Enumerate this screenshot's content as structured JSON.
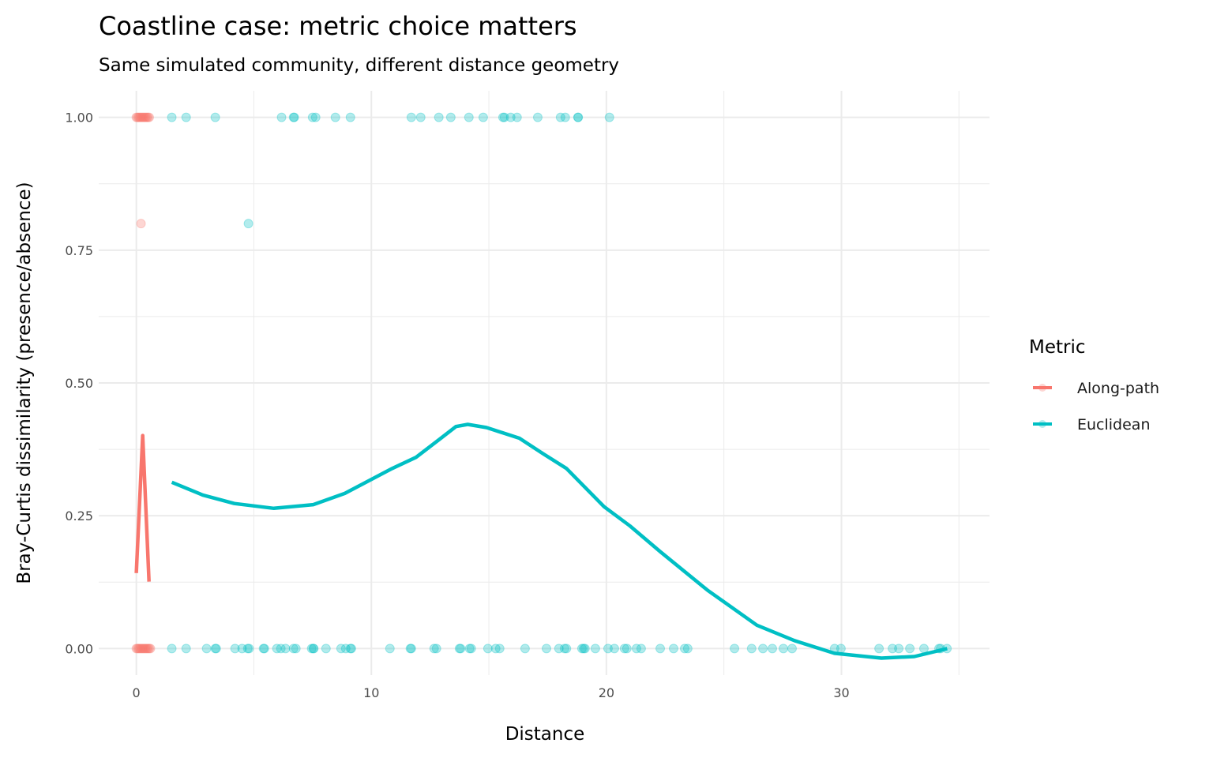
{
  "chart_data": {
    "type": "scatter",
    "title": "Coastline case: metric choice matters",
    "subtitle": "Same simulated community, different distance geometry",
    "xlabel": "Distance",
    "ylabel": "Bray-Curtis dissimilarity (presence/absence)",
    "xlim": [
      -1.6,
      36.3
    ],
    "ylim": [
      -0.05,
      1.05
    ],
    "xticks": [
      0,
      10,
      20,
      30
    ],
    "xtick_labels": [
      "0",
      "10",
      "20",
      "30"
    ],
    "yticks": [
      0,
      0.25,
      0.5,
      0.75,
      1
    ],
    "ytick_labels": [
      "0.00",
      "0.25",
      "0.50",
      "0.75",
      "1.00"
    ],
    "grid": true,
    "legend": {
      "title": "Metric",
      "placement": "right"
    },
    "series": [
      {
        "name": "Along-path",
        "color": "#F8766D",
        "points_y1": [
          0.0,
          0.05,
          0.1,
          0.15,
          0.2,
          0.25,
          0.3,
          0.35,
          0.4,
          0.45,
          0.5,
          0.55
        ],
        "points_y08": [
          0.2
        ],
        "points_y0": [
          0.0,
          0.05,
          0.1,
          0.15,
          0.2,
          0.25,
          0.3,
          0.35,
          0.4,
          0.45,
          0.5,
          0.55,
          0.6
        ],
        "smooth": [
          [
            0,
            0.142
          ],
          [
            0.27,
            0.401
          ],
          [
            0.54,
            0.126
          ]
        ]
      },
      {
        "name": "Euclidean",
        "color": "#00BFC4",
        "points_y1": [
          1.51,
          2.12,
          3.36,
          6.18,
          6.69,
          6.72,
          7.5,
          7.63,
          8.47,
          9.11,
          11.7,
          12.1,
          12.87,
          13.38,
          14.15,
          14.76,
          15.6,
          15.66,
          15.93,
          16.2,
          17.08,
          18.05,
          18.25,
          18.79,
          18.8,
          20.13
        ],
        "points_y08": [
          4.77
        ],
        "points_y0": [
          1.51,
          2.12,
          2.99,
          3.36,
          3.4,
          4.2,
          4.5,
          4.74,
          4.8,
          5.41,
          5.45,
          5.98,
          6.15,
          6.35,
          6.69,
          6.79,
          7.46,
          7.53,
          7.55,
          8.07,
          8.71,
          8.91,
          9.11,
          9.15,
          10.79,
          11.66,
          11.7,
          12.67,
          12.77,
          13.75,
          13.8,
          14.18,
          14.25,
          14.96,
          15.29,
          15.46,
          16.54,
          17.45,
          17.98,
          18.22,
          18.3,
          18.96,
          19.03,
          19.09,
          19.53,
          20.07,
          20.34,
          20.77,
          20.87,
          21.28,
          21.48,
          22.29,
          22.86,
          23.33,
          23.46,
          25.45,
          26.18,
          26.66,
          27.06,
          27.53,
          27.9,
          29.71,
          29.98,
          31.6,
          32.17,
          32.44,
          32.91,
          33.51,
          34.15,
          34.22,
          34.49
        ],
        "smooth": [
          [
            1.51,
            0.313
          ],
          [
            2.82,
            0.289
          ],
          [
            4.17,
            0.273
          ],
          [
            5.85,
            0.264
          ],
          [
            7.53,
            0.271
          ],
          [
            8.87,
            0.292
          ],
          [
            10.89,
            0.339
          ],
          [
            11.9,
            0.36
          ],
          [
            12.9,
            0.394
          ],
          [
            13.6,
            0.418
          ],
          [
            14.1,
            0.422
          ],
          [
            14.9,
            0.416
          ],
          [
            16.3,
            0.396
          ],
          [
            17.3,
            0.367
          ],
          [
            18.3,
            0.339
          ],
          [
            19.9,
            0.267
          ],
          [
            21,
            0.231
          ],
          [
            22.3,
            0.182
          ],
          [
            24.3,
            0.11
          ],
          [
            26.4,
            0.044
          ],
          [
            28,
            0.015
          ],
          [
            29.7,
            -0.009
          ],
          [
            31.7,
            -0.018
          ],
          [
            33.1,
            -0.015
          ],
          [
            34.5,
            0
          ]
        ]
      }
    ]
  }
}
